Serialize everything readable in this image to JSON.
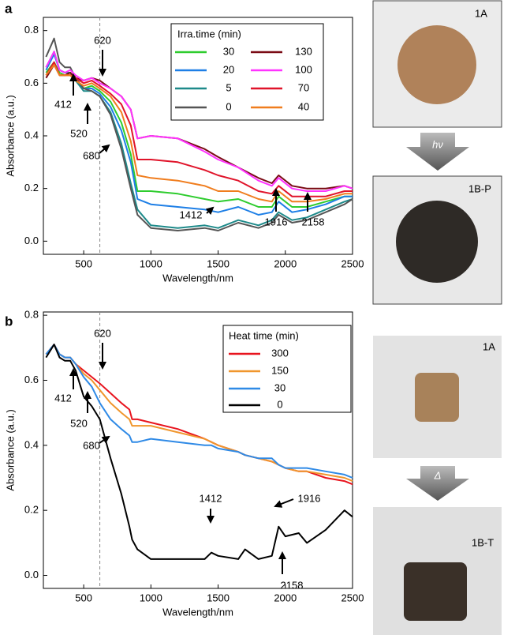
{
  "chart_data": [
    {
      "type": "line",
      "label": "a",
      "xlabel": "Wavelength/nm",
      "ylabel": "Absorbance (a.u.)",
      "legend_title": "Irra.time (min)",
      "x": [
        220,
        280,
        320,
        360,
        400,
        440,
        500,
        560,
        620,
        700,
        780,
        850,
        900,
        1000,
        1200,
        1400,
        1500,
        1650,
        1800,
        1900,
        1950,
        2050,
        2160,
        2300,
        2440,
        2500
      ],
      "series": [
        {
          "name": "30",
          "color": "#2ecc2e",
          "values": [
            0.64,
            0.68,
            0.64,
            0.63,
            0.63,
            0.61,
            0.58,
            0.59,
            0.57,
            0.53,
            0.45,
            0.33,
            0.19,
            0.19,
            0.18,
            0.16,
            0.15,
            0.16,
            0.13,
            0.13,
            0.17,
            0.13,
            0.13,
            0.15,
            0.17,
            0.17
          ]
        },
        {
          "name": "20",
          "color": "#1e7fe6",
          "values": [
            0.65,
            0.71,
            0.65,
            0.64,
            0.64,
            0.61,
            0.58,
            0.58,
            0.56,
            0.51,
            0.42,
            0.3,
            0.16,
            0.14,
            0.13,
            0.12,
            0.11,
            0.13,
            0.1,
            0.11,
            0.15,
            0.11,
            0.12,
            0.14,
            0.17,
            0.17
          ]
        },
        {
          "name": "5",
          "color": "#1e8a8a",
          "values": [
            0.66,
            0.72,
            0.65,
            0.64,
            0.64,
            0.61,
            0.57,
            0.57,
            0.55,
            0.49,
            0.37,
            0.22,
            0.12,
            0.06,
            0.05,
            0.06,
            0.05,
            0.08,
            0.06,
            0.08,
            0.11,
            0.08,
            0.09,
            0.12,
            0.15,
            0.16
          ]
        },
        {
          "name": "0",
          "color": "#555555",
          "values": [
            0.7,
            0.77,
            0.68,
            0.66,
            0.66,
            0.62,
            0.58,
            0.57,
            0.55,
            0.48,
            0.35,
            0.2,
            0.1,
            0.05,
            0.04,
            0.05,
            0.04,
            0.07,
            0.05,
            0.07,
            0.1,
            0.07,
            0.08,
            0.11,
            0.14,
            0.16
          ]
        },
        {
          "name": "130",
          "color": "#7a0a14",
          "values": [
            0.62,
            0.67,
            0.63,
            0.63,
            0.64,
            0.62,
            0.61,
            0.62,
            0.61,
            0.58,
            0.55,
            0.5,
            0.39,
            0.4,
            0.39,
            0.35,
            0.32,
            0.28,
            0.24,
            0.22,
            0.25,
            0.21,
            0.2,
            0.2,
            0.21,
            0.2
          ]
        },
        {
          "name": "100",
          "color": "#ff33ff",
          "values": [
            0.66,
            0.72,
            0.65,
            0.64,
            0.65,
            0.63,
            0.61,
            0.62,
            0.6,
            0.58,
            0.55,
            0.5,
            0.39,
            0.4,
            0.39,
            0.34,
            0.31,
            0.28,
            0.23,
            0.21,
            0.24,
            0.2,
            0.19,
            0.19,
            0.21,
            0.2
          ]
        },
        {
          "name": "70",
          "color": "#e0142a",
          "values": [
            0.63,
            0.68,
            0.63,
            0.63,
            0.63,
            0.62,
            0.6,
            0.61,
            0.59,
            0.56,
            0.52,
            0.44,
            0.31,
            0.31,
            0.3,
            0.27,
            0.25,
            0.23,
            0.19,
            0.18,
            0.21,
            0.17,
            0.17,
            0.17,
            0.19,
            0.19
          ]
        },
        {
          "name": "40",
          "color": "#f07d1e",
          "values": [
            0.63,
            0.67,
            0.63,
            0.63,
            0.63,
            0.61,
            0.59,
            0.6,
            0.58,
            0.55,
            0.49,
            0.38,
            0.25,
            0.24,
            0.23,
            0.21,
            0.19,
            0.19,
            0.16,
            0.15,
            0.19,
            0.15,
            0.15,
            0.16,
            0.18,
            0.18
          ]
        }
      ],
      "xlim": [
        200,
        2500
      ],
      "xticks": [
        500,
        1000,
        1500,
        2000,
        2500
      ],
      "ylim": [
        -0.05,
        0.85
      ],
      "yticks": [
        {
          "value": 0,
          "label": "0.0"
        },
        0.2,
        0.4,
        0.6,
        0.8
      ],
      "vline": 620,
      "annotations": [
        "620",
        "412",
        "520",
        "680",
        "1412",
        "1916",
        "2158"
      ]
    },
    {
      "type": "line",
      "label": "b",
      "xlabel": "Wavelength/nm",
      "ylabel": "Absorbance (a.u.)",
      "legend_title": "Heat time (min)",
      "x": [
        220,
        280,
        320,
        360,
        400,
        440,
        500,
        560,
        620,
        700,
        780,
        840,
        860,
        900,
        1000,
        1200,
        1400,
        1450,
        1500,
        1650,
        1700,
        1800,
        1900,
        1950,
        2000,
        2100,
        2160,
        2300,
        2440,
        2500
      ],
      "series": [
        {
          "name": "300",
          "color": "#e8141e",
          "values": [
            0.68,
            0.71,
            0.68,
            0.67,
            0.67,
            0.65,
            0.63,
            0.61,
            0.59,
            0.56,
            0.53,
            0.51,
            0.48,
            0.48,
            0.47,
            0.45,
            0.42,
            0.41,
            0.4,
            0.38,
            0.37,
            0.36,
            0.35,
            0.34,
            0.33,
            0.32,
            0.32,
            0.3,
            0.29,
            0.28
          ]
        },
        {
          "name": "150",
          "color": "#f0962d",
          "values": [
            0.68,
            0.71,
            0.68,
            0.67,
            0.67,
            0.65,
            0.62,
            0.6,
            0.57,
            0.53,
            0.5,
            0.48,
            0.46,
            0.46,
            0.46,
            0.44,
            0.42,
            0.41,
            0.4,
            0.38,
            0.37,
            0.36,
            0.35,
            0.34,
            0.33,
            0.32,
            0.32,
            0.31,
            0.3,
            0.29
          ]
        },
        {
          "name": "30",
          "color": "#2f8ae6",
          "values": [
            0.68,
            0.71,
            0.68,
            0.67,
            0.67,
            0.65,
            0.61,
            0.58,
            0.53,
            0.48,
            0.45,
            0.43,
            0.41,
            0.41,
            0.42,
            0.41,
            0.4,
            0.4,
            0.39,
            0.38,
            0.37,
            0.36,
            0.36,
            0.34,
            0.33,
            0.33,
            0.33,
            0.32,
            0.31,
            0.3
          ]
        },
        {
          "name": "0",
          "color": "#000000",
          "values": [
            0.67,
            0.71,
            0.67,
            0.66,
            0.66,
            0.63,
            0.55,
            0.52,
            0.48,
            0.36,
            0.25,
            0.15,
            0.11,
            0.08,
            0.05,
            0.05,
            0.05,
            0.07,
            0.06,
            0.05,
            0.08,
            0.05,
            0.06,
            0.15,
            0.12,
            0.13,
            0.1,
            0.14,
            0.2,
            0.18
          ]
        }
      ],
      "xlim": [
        200,
        2500
      ],
      "xticks": [
        500,
        1000,
        1500,
        2000,
        2500
      ],
      "ylim": [
        -0.04,
        0.81
      ],
      "yticks": [
        {
          "value": 0,
          "label": "0.0"
        },
        0.2,
        0.4,
        0.6,
        0.8
      ],
      "vline": 620,
      "annotations": [
        "620",
        "412",
        "520",
        "680",
        "1412",
        "1916",
        "2158"
      ]
    }
  ],
  "photos": [
    "1A",
    "1B-P",
    "1A",
    "1B-T"
  ],
  "transitions": [
    "hν",
    "Δ"
  ]
}
